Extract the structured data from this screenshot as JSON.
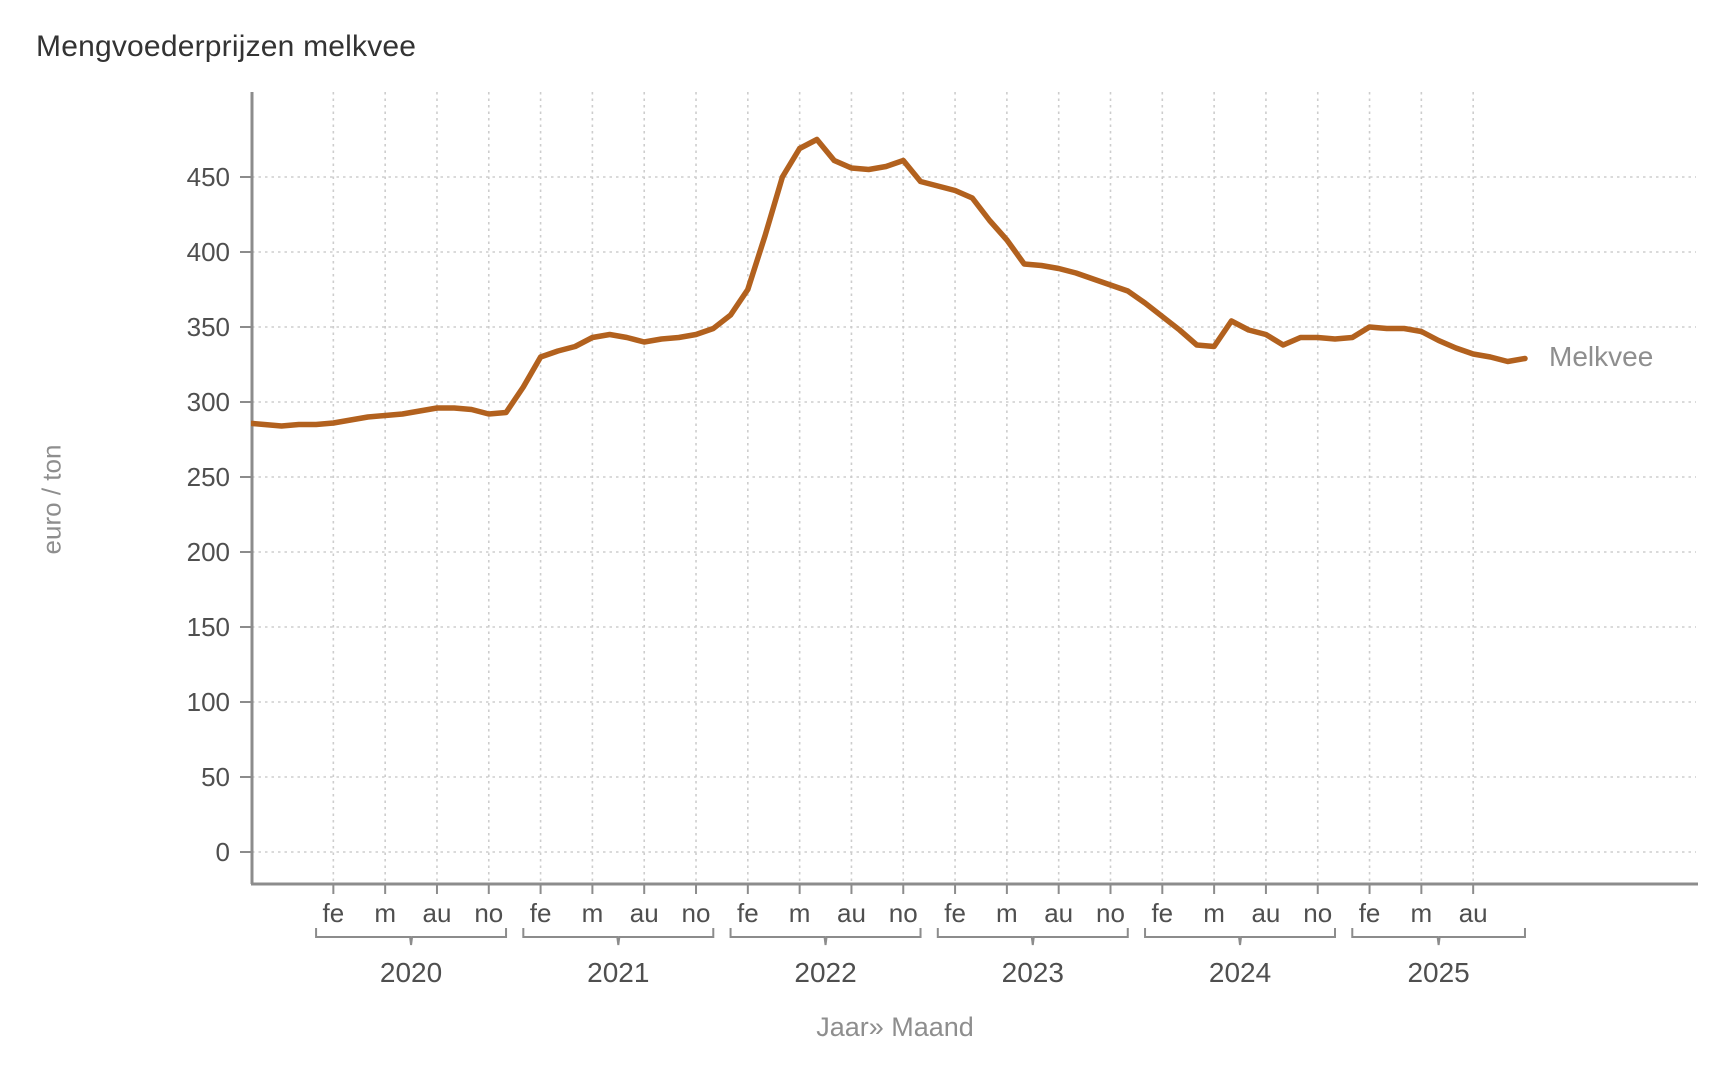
{
  "title": "Mengvoederprijzen melkvee",
  "y_axis": {
    "label": "euro / ton",
    "ticks": [
      0,
      50,
      100,
      150,
      200,
      250,
      300,
      350,
      400,
      450
    ]
  },
  "x_axis": {
    "label": "Jaar» Maand",
    "month_tick_labels": [
      "fe",
      "m",
      "au",
      "no"
    ],
    "year_groups": [
      {
        "label": "2020",
        "months": [
          "fe",
          "m",
          "au",
          "no"
        ]
      },
      {
        "label": "2021",
        "months": [
          "fe",
          "m",
          "au",
          "no"
        ]
      },
      {
        "label": "2022",
        "months": [
          "fe",
          "m",
          "au",
          "no"
        ]
      },
      {
        "label": "2023",
        "months": [
          "fe",
          "m",
          "au",
          "no"
        ]
      },
      {
        "label": "2024",
        "months": [
          "fe",
          "m",
          "au",
          "no"
        ]
      },
      {
        "label": "2025",
        "months": [
          "fe",
          "m",
          "au"
        ]
      }
    ]
  },
  "series_end_label": "Melkvee",
  "colors": {
    "line": "#b2611e",
    "axis": "#8c8c8c",
    "grid": "#cdcdcd",
    "tick_text": "#4f4f4f",
    "muted_text": "#8e8e8e",
    "title_text": "#333333"
  },
  "chart_data": {
    "type": "line",
    "title": "Mengvoederprijzen melkvee",
    "xlabel": "Jaar» Maand",
    "ylabel": "euro / ton",
    "ylim": [
      0,
      508
    ],
    "grid": true,
    "x_interval": "monthly",
    "x_start": "2019-09",
    "x_end": "2025-11",
    "legend_position": "end-of-line",
    "series": [
      {
        "name": "Melkvee",
        "color": "#b2611e",
        "start": "2019-09",
        "monthly_values": [
          286,
          285,
          284,
          285,
          285,
          286,
          288,
          290,
          291,
          292,
          294,
          296,
          296,
          295,
          292,
          293,
          310,
          330,
          334,
          337,
          343,
          345,
          343,
          340,
          342,
          343,
          345,
          349,
          358,
          375,
          411,
          450,
          469,
          475,
          461,
          456,
          455,
          457,
          461,
          447,
          444,
          441,
          436,
          421,
          408,
          392,
          391,
          389,
          386,
          382,
          378,
          374,
          366,
          357,
          348,
          338,
          337,
          354,
          348,
          345,
          338,
          343,
          343,
          342,
          343,
          350,
          349,
          349,
          347,
          341,
          336,
          332,
          330,
          327,
          329
        ]
      }
    ]
  }
}
